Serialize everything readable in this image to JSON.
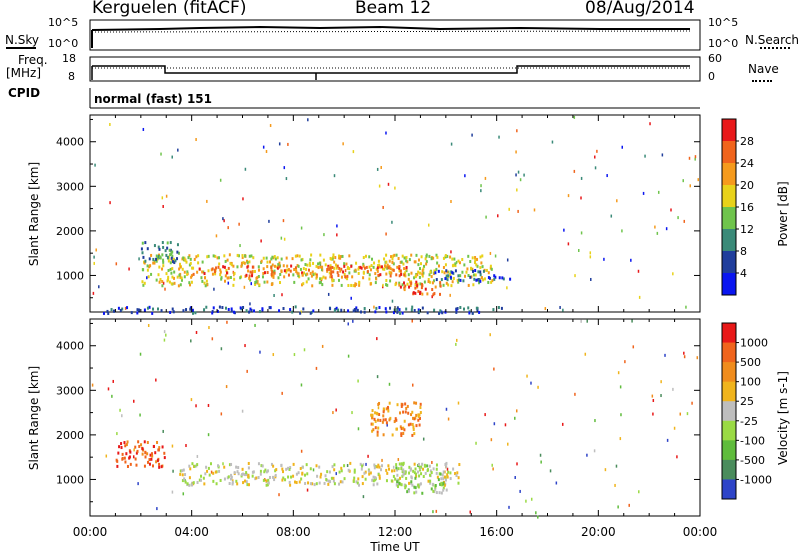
{
  "header": {
    "station": "Kerguelen (fitACF)",
    "beam": "Beam 12",
    "date": "08/Aug/2014"
  },
  "nsky": {
    "label": "N.Sky",
    "ticks": [
      "10^5",
      "10^0"
    ],
    "right_label": "N.Search",
    "right_ticks": [
      "10^5",
      "10^0"
    ]
  },
  "freq": {
    "label_line1": "Freq.",
    "label_line2": "[MHz]",
    "ticks": [
      "18",
      "8"
    ],
    "right_label": "Nave",
    "right_ticks": [
      "60",
      "0"
    ]
  },
  "cpid": {
    "label": "CPID",
    "value": "normal (fast) 151"
  },
  "x_axis": {
    "label": "Time UT",
    "ticks": [
      "00:00",
      "04:00",
      "08:00",
      "12:00",
      "16:00",
      "20:00",
      "00:00"
    ]
  },
  "chart_data": [
    {
      "type": "heatmap",
      "name": "power",
      "x_range_hours": [
        0,
        24
      ],
      "ylabel": "Slant Range [km]",
      "yticks": [
        "1000",
        "2000",
        "3000",
        "4000"
      ],
      "ylim": [
        180,
        4600
      ],
      "colorbar": {
        "label": "Power [dB]",
        "ticks": [
          "4",
          "8",
          "12",
          "16",
          "20",
          "24",
          "28"
        ],
        "colors": [
          "#0a16f0",
          "#203e9c",
          "#3a8a78",
          "#6fc44c",
          "#e8d21a",
          "#f59a1c",
          "#f0641c",
          "#e8181a"
        ]
      },
      "regions": [
        {
          "t": [
            0.5,
            16.2
          ],
          "r": [
            180,
            330
          ],
          "level": 1
        },
        {
          "t": [
            2.0,
            15.8
          ],
          "r": [
            800,
            1500
          ],
          "level": 4
        },
        {
          "t": [
            4.0,
            12.5
          ],
          "r": [
            1000,
            1250
          ],
          "level": 6
        },
        {
          "t": [
            12.0,
            14.0
          ],
          "r": [
            600,
            900
          ],
          "level": 6
        },
        {
          "t": [
            2.0,
            3.5
          ],
          "r": [
            1300,
            1800
          ],
          "level": 2
        },
        {
          "t": [
            13.5,
            16.5
          ],
          "r": [
            900,
            1150
          ],
          "level": 1
        }
      ]
    },
    {
      "type": "heatmap",
      "name": "velocity",
      "x_range_hours": [
        0,
        24
      ],
      "ylabel": "Slant Range [km]",
      "yticks": [
        "1000",
        "2000",
        "3000",
        "4000"
      ],
      "ylim": [
        180,
        4600
      ],
      "colorbar": {
        "label": "Velocity [m s-1]",
        "ticks": [
          "1000",
          "500",
          "100",
          "25",
          "-25",
          "-100",
          "-500",
          "-1000"
        ],
        "colors": [
          "#2e44c8",
          "#4a8c5c",
          "#5fbc3c",
          "#9ada44",
          "#bebebe",
          "#f0b41c",
          "#f08c1c",
          "#f0641c",
          "#e81818"
        ]
      },
      "regions": [
        {
          "t": [
            3.5,
            14.5
          ],
          "r": [
            900,
            1400
          ],
          "level": 4
        },
        {
          "t": [
            12.0,
            14.0
          ],
          "r": [
            700,
            1400
          ],
          "level": 3
        },
        {
          "t": [
            1.0,
            3.0
          ],
          "r": [
            1300,
            1900
          ],
          "level": 7
        },
        {
          "t": [
            11.0,
            13.0
          ],
          "r": [
            2000,
            2800
          ],
          "level": 6
        }
      ]
    }
  ]
}
